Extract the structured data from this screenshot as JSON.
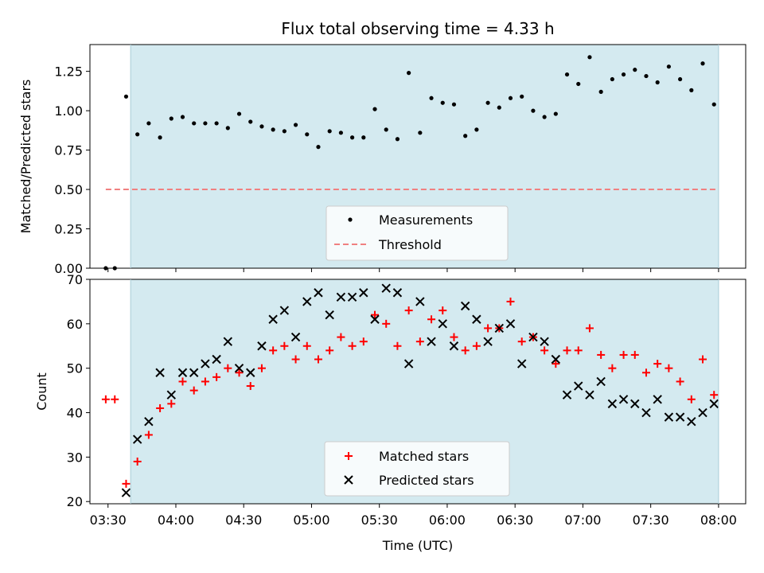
{
  "chart_data": {
    "type": "scatter",
    "title": "Flux total observing time = 4.33 h",
    "xlabel": "Time (UTC)",
    "x_ticks": [
      "03:30",
      "04:00",
      "04:30",
      "05:00",
      "05:30",
      "06:00",
      "06:30",
      "07:00",
      "07:30",
      "08:00"
    ],
    "xlim": [
      "03:22",
      "08:12"
    ],
    "observing_window": [
      "03:40",
      "08:00"
    ],
    "shade_color": "#d4eaf0",
    "top": {
      "ylabel": "Matched/Predicted stars",
      "ylim": [
        0,
        1.42
      ],
      "y_ticks": [
        "0.00",
        "0.25",
        "0.50",
        "0.75",
        "1.00",
        "1.25"
      ],
      "threshold": {
        "name": "Threshold",
        "value": 0.5,
        "range": [
          "03:29",
          "07:59"
        ],
        "color": "#f08080"
      },
      "series": [
        {
          "name": "Measurements",
          "color": "#000000",
          "x": [
            "03:29",
            "03:33",
            "03:38",
            "03:43",
            "03:48",
            "03:53",
            "03:58",
            "04:03",
            "04:08",
            "04:13",
            "04:18",
            "04:23",
            "04:28",
            "04:33",
            "04:38",
            "04:43",
            "04:48",
            "04:53",
            "04:58",
            "05:03",
            "05:08",
            "05:13",
            "05:18",
            "05:23",
            "05:28",
            "05:33",
            "05:38",
            "05:43",
            "05:48",
            "05:53",
            "05:58",
            "06:03",
            "06:08",
            "06:13",
            "06:18",
            "06:23",
            "06:28",
            "06:33",
            "06:38",
            "06:43",
            "06:48",
            "06:53",
            "06:58",
            "07:03",
            "07:08",
            "07:13",
            "07:18",
            "07:23",
            "07:28",
            "07:33",
            "07:38",
            "07:43",
            "07:48",
            "07:53",
            "07:58"
          ],
          "y": [
            0.0,
            0.0,
            1.09,
            0.85,
            0.92,
            0.83,
            0.95,
            0.96,
            0.92,
            0.92,
            0.92,
            0.89,
            0.98,
            0.93,
            0.9,
            0.88,
            0.87,
            0.91,
            0.85,
            0.77,
            0.87,
            0.86,
            0.83,
            0.83,
            1.01,
            0.88,
            0.82,
            1.24,
            0.86,
            1.08,
            1.05,
            1.04,
            0.84,
            0.88,
            1.05,
            1.02,
            1.08,
            1.09,
            1.0,
            0.96,
            0.98,
            1.23,
            1.17,
            1.34,
            1.12,
            1.2,
            1.23,
            1.26,
            1.22,
            1.18,
            1.28,
            1.2,
            1.13,
            1.3,
            1.04
          ]
        }
      ]
    },
    "bottom": {
      "ylabel": "Count",
      "ylim": [
        19.5,
        70
      ],
      "y_ticks": [
        "20",
        "30",
        "40",
        "50",
        "60",
        "70"
      ],
      "series": [
        {
          "name": "Matched stars",
          "color": "#ff0000",
          "marker": "+",
          "x": [
            "03:29",
            "03:33",
            "03:38",
            "03:43",
            "03:48",
            "03:53",
            "03:58",
            "04:03",
            "04:08",
            "04:13",
            "04:18",
            "04:23",
            "04:28",
            "04:33",
            "04:38",
            "04:43",
            "04:48",
            "04:53",
            "04:58",
            "05:03",
            "05:08",
            "05:13",
            "05:18",
            "05:23",
            "05:28",
            "05:33",
            "05:38",
            "05:43",
            "05:48",
            "05:53",
            "05:58",
            "06:03",
            "06:08",
            "06:13",
            "06:18",
            "06:23",
            "06:28",
            "06:33",
            "06:38",
            "06:43",
            "06:48",
            "06:53",
            "06:58",
            "07:03",
            "07:08",
            "07:13",
            "07:18",
            "07:23",
            "07:28",
            "07:33",
            "07:38",
            "07:43",
            "07:48",
            "07:53",
            "07:58"
          ],
          "y": [
            43,
            43,
            24,
            29,
            35,
            41,
            42,
            47,
            45,
            47,
            48,
            50,
            49,
            46,
            50,
            54,
            55,
            52,
            55,
            52,
            54,
            57,
            55,
            56,
            62,
            60,
            55,
            63,
            56,
            61,
            63,
            57,
            54,
            55,
            59,
            59,
            65,
            56,
            57,
            54,
            51,
            54,
            54,
            59,
            53,
            50,
            53,
            53,
            49,
            51,
            50,
            47,
            43,
            52,
            44
          ]
        },
        {
          "name": "Predicted stars",
          "color": "#000000",
          "marker": "x",
          "x": [
            "03:38",
            "03:43",
            "03:48",
            "03:53",
            "03:58",
            "04:03",
            "04:08",
            "04:13",
            "04:18",
            "04:23",
            "04:28",
            "04:33",
            "04:38",
            "04:43",
            "04:48",
            "04:53",
            "04:58",
            "05:03",
            "05:08",
            "05:13",
            "05:18",
            "05:23",
            "05:28",
            "05:33",
            "05:38",
            "05:43",
            "05:48",
            "05:53",
            "05:58",
            "06:03",
            "06:08",
            "06:13",
            "06:18",
            "06:23",
            "06:28",
            "06:33",
            "06:38",
            "06:43",
            "06:48",
            "06:53",
            "06:58",
            "07:03",
            "07:08",
            "07:13",
            "07:18",
            "07:23",
            "07:28",
            "07:33",
            "07:38",
            "07:43",
            "07:48",
            "07:53",
            "07:58"
          ],
          "y": [
            22,
            34,
            38,
            49,
            44,
            49,
            49,
            51,
            52,
            56,
            50,
            49,
            55,
            61,
            63,
            57,
            65,
            67,
            62,
            66,
            66,
            67,
            61,
            68,
            67,
            51,
            65,
            56,
            60,
            55,
            64,
            61,
            56,
            59,
            60,
            51,
            57,
            56,
            52,
            44,
            46,
            44,
            47,
            42,
            43,
            42,
            40,
            43,
            39,
            39,
            38,
            40,
            42
          ]
        }
      ]
    }
  }
}
